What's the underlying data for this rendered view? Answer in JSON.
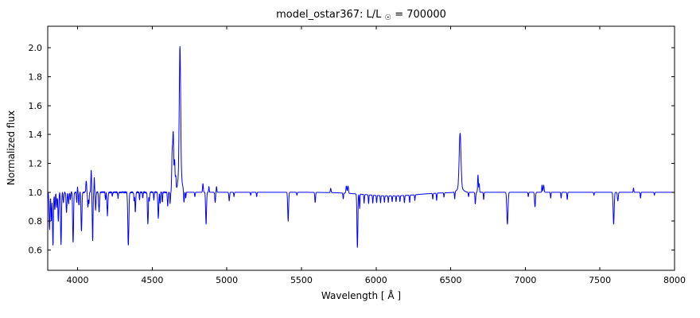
{
  "figure": {
    "title": {
      "prefix": "model_ostar367: L/L",
      "sun": "☉",
      "suffix": " = 700000"
    },
    "xlabel": "Wavelength [ Å ]",
    "ylabel": "Normalized flux"
  },
  "chart_data": {
    "type": "line",
    "title": "model_ostar367: L/L☉ = 700000",
    "xlabel": "Wavelength [ Å ]",
    "ylabel": "Normalized flux",
    "legend": "none",
    "grid": false,
    "line_color": "#0000ff",
    "axis_color": "#000000",
    "background": "#ffffff",
    "xlim": [
      3800,
      8000
    ],
    "ylim": [
      0.46,
      2.15
    ],
    "xticks": [
      4000,
      4500,
      5000,
      5500,
      6000,
      6500,
      7000,
      7500,
      8000
    ],
    "yticks": [
      0.6,
      0.8,
      1.0,
      1.2,
      1.4,
      1.6,
      1.8,
      2.0
    ],
    "x_range": [
      3800,
      8000
    ],
    "sample_step": 1,
    "continuum": 1.0,
    "noise": {
      "amp": 0.005,
      "region": [
        3805,
        4630
      ]
    },
    "feature_format": "center_angstrom, amplitude_relative_to_continuum, sigma_angstrom",
    "features": [
      [
        3812,
        -0.26,
        3
      ],
      [
        3824,
        -0.2,
        2.5
      ],
      [
        3835,
        -0.37,
        3
      ],
      [
        3848,
        -0.12,
        2.5
      ],
      [
        3860,
        -0.1,
        2.5
      ],
      [
        3871,
        -0.2,
        3
      ],
      [
        3889,
        -0.36,
        3
      ],
      [
        3905,
        -0.07,
        2.5
      ],
      [
        3926,
        -0.14,
        3
      ],
      [
        3940,
        -0.08,
        2.5
      ],
      [
        3952,
        -0.05,
        2
      ],
      [
        3970,
        -0.35,
        3
      ],
      [
        3995,
        -0.07,
        2.5
      ],
      [
        3999,
        0.05,
        1.8
      ],
      [
        4009,
        -0.09,
        2.5
      ],
      [
        4026,
        -0.27,
        3
      ],
      [
        4058,
        0.08,
        2.5
      ],
      [
        4069,
        -0.1,
        2.5
      ],
      [
        4076,
        -0.08,
        2
      ],
      [
        4089,
        0.06,
        2
      ],
      [
        4092,
        0.13,
        1.8
      ],
      [
        4101,
        -0.34,
        2.5
      ],
      [
        4112,
        0.1,
        2
      ],
      [
        4121,
        -0.12,
        2.5
      ],
      [
        4144,
        -0.14,
        3
      ],
      [
        4187,
        -0.05,
        2
      ],
      [
        4200,
        -0.16,
        3
      ],
      [
        4233,
        -0.03,
        2
      ],
      [
        4271,
        -0.04,
        2
      ],
      [
        4340,
        -0.37,
        3.5
      ],
      [
        4379,
        -0.06,
        2
      ],
      [
        4387,
        -0.14,
        2.5
      ],
      [
        4415,
        -0.05,
        2
      ],
      [
        4437,
        -0.04,
        2
      ],
      [
        4471,
        -0.22,
        3
      ],
      [
        4481,
        -0.06,
        2
      ],
      [
        4511,
        -0.05,
        2
      ],
      [
        4541,
        -0.18,
        3
      ],
      [
        4553,
        -0.08,
        2
      ],
      [
        4568,
        -0.07,
        2
      ],
      [
        4604,
        -0.1,
        2.5
      ],
      [
        4620,
        -0.08,
        2
      ],
      [
        4634,
        0.28,
        3
      ],
      [
        4641,
        0.4,
        3
      ],
      [
        4650,
        0.22,
        3
      ],
      [
        4658,
        0.1,
        2.5
      ],
      [
        4686,
        0.86,
        4.5
      ],
      [
        4686,
        0.15,
        12
      ],
      [
        4713,
        -0.08,
        2.5
      ],
      [
        4725,
        -0.04,
        2
      ],
      [
        4786,
        -0.03,
        2
      ],
      [
        4840,
        0.06,
        2.5
      ],
      [
        4861,
        -0.22,
        3
      ],
      [
        4880,
        0.04,
        2
      ],
      [
        4922,
        -0.07,
        2.5
      ],
      [
        4931,
        0.04,
        2
      ],
      [
        5016,
        -0.06,
        2.5
      ],
      [
        5048,
        -0.03,
        2
      ],
      [
        5160,
        -0.02,
        2
      ],
      [
        5200,
        -0.03,
        2
      ],
      [
        5411,
        -0.2,
        3
      ],
      [
        5470,
        -0.02,
        2
      ],
      [
        5592,
        -0.07,
        2.5
      ],
      [
        5696,
        0.03,
        2.5
      ],
      [
        5780,
        -0.04,
        2
      ],
      [
        5801,
        0.05,
        3
      ],
      [
        5812,
        0.05,
        3
      ],
      [
        5875,
        -0.37,
        3
      ],
      [
        5890,
        -0.1,
        2
      ],
      [
        6100,
        -0.025,
        180
      ],
      [
        5920,
        -0.06,
        2
      ],
      [
        5950,
        -0.06,
        2
      ],
      [
        5978,
        -0.055,
        2
      ],
      [
        6004,
        -0.05,
        2
      ],
      [
        6030,
        -0.05,
        2
      ],
      [
        6056,
        -0.045,
        2
      ],
      [
        6082,
        -0.045,
        2
      ],
      [
        6108,
        -0.04,
        2
      ],
      [
        6134,
        -0.04,
        2
      ],
      [
        6160,
        -0.04,
        2
      ],
      [
        6190,
        -0.05,
        2
      ],
      [
        6225,
        -0.05,
        2
      ],
      [
        6260,
        -0.04,
        2
      ],
      [
        6380,
        -0.04,
        2
      ],
      [
        6406,
        -0.05,
        2
      ],
      [
        6455,
        -0.03,
        2
      ],
      [
        6527,
        -0.05,
        2
      ],
      [
        6563,
        0.38,
        6
      ],
      [
        6563,
        0.03,
        20
      ],
      [
        6620,
        -0.03,
        2
      ],
      [
        6665,
        -0.08,
        2.5
      ],
      [
        6683,
        0.12,
        2.5
      ],
      [
        6691,
        0.06,
        2
      ],
      [
        6721,
        -0.05,
        2
      ],
      [
        6880,
        -0.22,
        4
      ],
      [
        7020,
        -0.03,
        2
      ],
      [
        7065,
        -0.1,
        3
      ],
      [
        7112,
        0.05,
        2
      ],
      [
        7123,
        0.05,
        3
      ],
      [
        7170,
        -0.04,
        2
      ],
      [
        7240,
        -0.04,
        2
      ],
      [
        7281,
        -0.05,
        2
      ],
      [
        7460,
        -0.02,
        2
      ],
      [
        7592,
        -0.22,
        3.5
      ],
      [
        7620,
        -0.06,
        3
      ],
      [
        7725,
        0.03,
        2
      ],
      [
        7772,
        -0.04,
        2
      ],
      [
        7865,
        -0.02,
        2
      ]
    ],
    "notable_lines": [
      {
        "wavelength": 4641,
        "peak_flux": 1.4,
        "kind": "emission"
      },
      {
        "wavelength": 4686,
        "peak_flux": 2.01,
        "kind": "emission"
      },
      {
        "wavelength": 6563,
        "peak_flux": 1.41,
        "kind": "emission"
      },
      {
        "wavelength": 3835,
        "min_flux": 0.63,
        "kind": "absorption"
      },
      {
        "wavelength": 4340,
        "min_flux": 0.63,
        "kind": "absorption"
      },
      {
        "wavelength": 5875,
        "min_flux": 0.63,
        "kind": "absorption"
      },
      {
        "wavelength": 6880,
        "min_flux": 0.78,
        "kind": "absorption"
      },
      {
        "wavelength": 7592,
        "min_flux": 0.78,
        "kind": "absorption"
      }
    ]
  }
}
